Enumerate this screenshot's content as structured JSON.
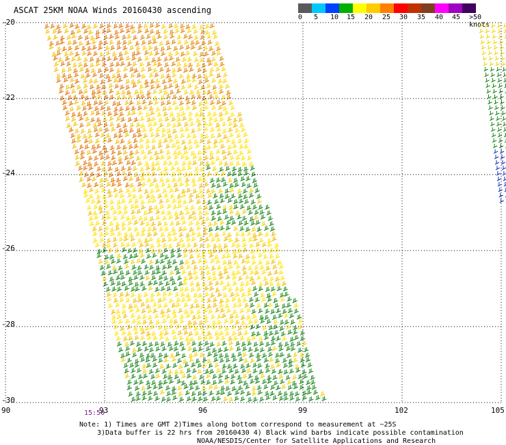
{
  "title": "ASCAT 25KM NOAA Winds 20160430 ascending",
  "colorbar": {
    "colors": [
      "#5a5a5a",
      "#00c8ff",
      "#0040ff",
      "#00b000",
      "#ffff00",
      "#ffcc00",
      "#ff8000",
      "#ff0000",
      "#c03000",
      "#804020",
      "#ff00ff",
      "#a000c0",
      "#400060"
    ],
    "ticks": [
      "0",
      "5",
      "10",
      "15",
      "20",
      "25",
      "30",
      "35",
      "40",
      "45",
      ">50 knots"
    ]
  },
  "map": {
    "x_ticks": [
      "90",
      "93",
      "96",
      "99",
      "102",
      "105"
    ],
    "y_ticks": [
      "-20",
      "-22",
      "-24",
      "-26",
      "-28",
      "-30"
    ],
    "lon_range": [
      90,
      105
    ],
    "lat_range": [
      -30,
      -20
    ]
  },
  "time_label": "15:50",
  "notes": [
    "Note: 1) Times are GMT 2)Times along bottom correspond to measurement at ~25S",
    "3)Data buffer is 22 hrs from 20160430 4) Black wind barbs indicate possible contamination",
    "NOAA/NESDIS/Center for Satellite Applications and Research"
  ]
}
